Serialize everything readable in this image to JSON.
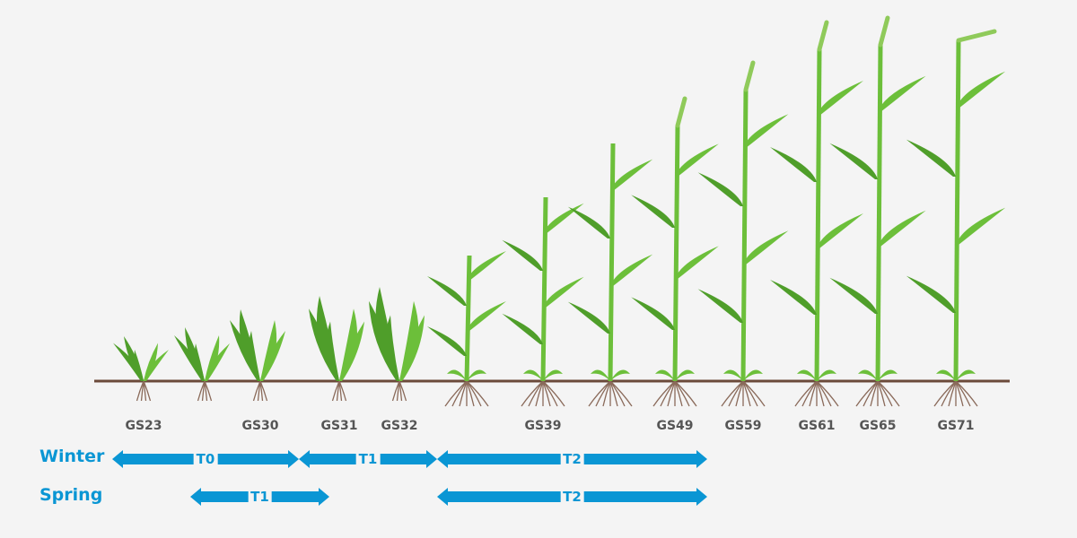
{
  "colors": {
    "arrow": "#0a96d4",
    "plant": "#6cbf3a",
    "plant_dark": "#4f9e2a",
    "soil": "#6b4a3a",
    "root": "#8a6a5a",
    "label": "#555555"
  },
  "stages": [
    {
      "label": "GS23"
    },
    {
      "label": ""
    },
    {
      "label": "GS30"
    },
    {
      "label": "GS31"
    },
    {
      "label": "GS32"
    },
    {
      "label": ""
    },
    {
      "label": "GS39"
    },
    {
      "label": ""
    },
    {
      "label": "GS49"
    },
    {
      "label": "GS59"
    },
    {
      "label": "GS61"
    },
    {
      "label": "GS65"
    },
    {
      "label": "GS71"
    }
  ],
  "timings": {
    "winter": {
      "label": "Winter",
      "arrows": [
        {
          "label": "T0",
          "from": "GS23",
          "to": "GS30"
        },
        {
          "label": "T1",
          "from": "GS31",
          "to": "GS32"
        },
        {
          "label": "T2",
          "from": "GS32",
          "to": "GS49"
        }
      ]
    },
    "spring": {
      "label": "Spring",
      "arrows": [
        {
          "label": "T1",
          "from": "GS30",
          "to": "GS31"
        },
        {
          "label": "T2",
          "from": "GS32",
          "to": "GS49"
        }
      ]
    }
  }
}
